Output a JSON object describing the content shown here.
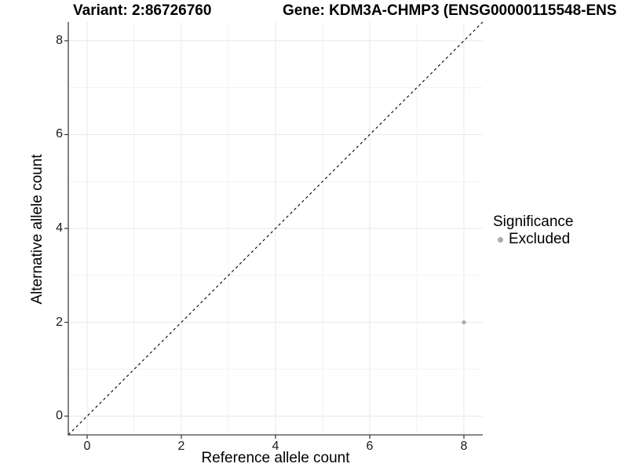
{
  "chart_data": {
    "type": "scatter",
    "title_left": "Variant: 2:86726760",
    "title_right": "Gene: KDM3A-CHMP3 (ENSG00000115548-ENS",
    "xlabel": "Reference allele count",
    "ylabel": "Alternative allele count",
    "xlim": [
      -0.4,
      8.4
    ],
    "ylim": [
      -0.4,
      8.4
    ],
    "x_major_ticks": [
      0,
      2,
      4,
      6,
      8
    ],
    "x_minor_ticks": [
      1,
      3,
      5,
      7
    ],
    "y_major_ticks": [
      0,
      2,
      4,
      6,
      8
    ],
    "y_minor_ticks": [
      1,
      3,
      5,
      7
    ],
    "grid": true,
    "legend_position": "right",
    "reference_line": {
      "kind": "identity",
      "from": [
        -0.4,
        -0.4
      ],
      "to": [
        8.4,
        8.4
      ],
      "style": "dashed",
      "color": "#000000"
    },
    "series": [
      {
        "name": "Excluded",
        "color": "#aaaaaa",
        "point_radius": 2.6,
        "points": [
          {
            "x": 8,
            "y": 2
          }
        ]
      }
    ],
    "legend": {
      "title": "Significance",
      "items": [
        {
          "label": "Excluded",
          "color": "#aaaaaa"
        }
      ]
    },
    "colors": {
      "background": "#ffffff",
      "grid_major": "#e8e8e8",
      "grid_minor": "#f2f2f2",
      "axis_line": "#404040",
      "tick_mark": "#333333",
      "text": "#000000"
    }
  }
}
